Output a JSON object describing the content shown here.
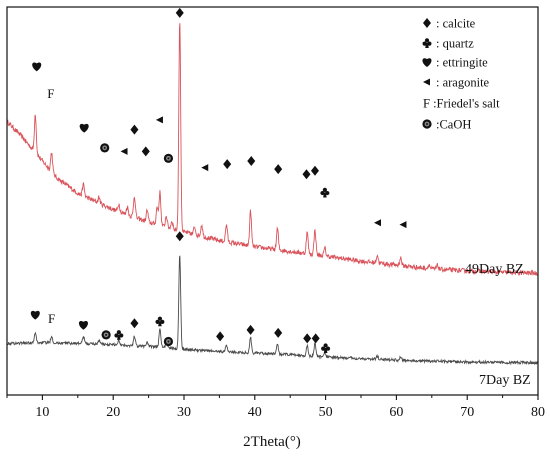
{
  "chart_data": {
    "type": "line",
    "title": "",
    "xlabel": "2Theta(°)",
    "ylabel": "",
    "xlim": [
      5,
      80
    ],
    "xticks": [
      "10",
      "20",
      "30",
      "40",
      "50",
      "60",
      "70",
      "80"
    ],
    "grid": false,
    "legend_position": "top-right",
    "colors": {
      "series_49day": "#d9535a",
      "series_7day": "#4a4a4a",
      "marker": "#111111"
    },
    "legend": [
      {
        "icon": "diamond-icon",
        "label": ": calcite"
      },
      {
        "icon": "club-icon",
        "label": ": quartz"
      },
      {
        "icon": "heart-icon",
        "label": ": ettringite"
      },
      {
        "icon": "triangle-left-icon",
        "label": " : aragonite"
      },
      {
        "icon": "F",
        "label": "F :Friedel's salt"
      },
      {
        "icon": "caoh-icon",
        "label": ":CaOH"
      }
    ],
    "series": [
      {
        "name": "49Day BZ",
        "color": "#d9535a",
        "baseline": [
          [
            5,
            0.705
          ],
          [
            7,
            0.668
          ],
          [
            9,
            0.625
          ],
          [
            12,
            0.56
          ],
          [
            15,
            0.52
          ],
          [
            20,
            0.478
          ],
          [
            25,
            0.445
          ],
          [
            30,
            0.42
          ],
          [
            35,
            0.398
          ],
          [
            40,
            0.382
          ],
          [
            45,
            0.37
          ],
          [
            50,
            0.358
          ],
          [
            55,
            0.345
          ],
          [
            60,
            0.335
          ],
          [
            65,
            0.325
          ],
          [
            70,
            0.32
          ],
          [
            75,
            0.316
          ],
          [
            80,
            0.314
          ]
        ],
        "peaks": [
          [
            9.0,
            0.1
          ],
          [
            11.3,
            0.05
          ],
          [
            15.8,
            0.03
          ],
          [
            18.0,
            0.015
          ],
          [
            20.8,
            0.02
          ],
          [
            22.0,
            0.02
          ],
          [
            23.0,
            0.055
          ],
          [
            24.8,
            0.03
          ],
          [
            26.2,
            0.045
          ],
          [
            26.6,
            0.085
          ],
          [
            27.5,
            0.03
          ],
          [
            28.3,
            0.02
          ],
          [
            29.4,
            0.545
          ],
          [
            31.5,
            0.02
          ],
          [
            32.5,
            0.03
          ],
          [
            36.0,
            0.045
          ],
          [
            39.4,
            0.09
          ],
          [
            43.2,
            0.055
          ],
          [
            47.4,
            0.055
          ],
          [
            48.5,
            0.065
          ],
          [
            49.9,
            0.02
          ],
          [
            57.3,
            0.02
          ],
          [
            60.6,
            0.02
          ],
          [
            64.6,
            0.01
          ],
          [
            65.8,
            0.01
          ]
        ]
      },
      {
        "name": "7Day BZ",
        "color": "#4a4a4a",
        "baseline": [
          [
            5,
            0.133
          ],
          [
            10,
            0.135
          ],
          [
            15,
            0.133
          ],
          [
            20,
            0.13
          ],
          [
            25,
            0.125
          ],
          [
            30,
            0.118
          ],
          [
            35,
            0.112
          ],
          [
            40,
            0.108
          ],
          [
            45,
            0.104
          ],
          [
            50,
            0.098
          ],
          [
            55,
            0.094
          ],
          [
            60,
            0.09
          ],
          [
            65,
            0.087
          ],
          [
            70,
            0.085
          ],
          [
            75,
            0.084
          ],
          [
            80,
            0.083
          ]
        ],
        "peaks": [
          [
            9.0,
            0.025
          ],
          [
            11.3,
            0.018
          ],
          [
            15.8,
            0.018
          ],
          [
            18.0,
            0.01
          ],
          [
            20.8,
            0.012
          ],
          [
            23.0,
            0.025
          ],
          [
            24.8,
            0.012
          ],
          [
            26.6,
            0.05
          ],
          [
            27.5,
            0.012
          ],
          [
            29.4,
            0.245
          ],
          [
            36.0,
            0.018
          ],
          [
            39.4,
            0.04
          ],
          [
            43.2,
            0.025
          ],
          [
            47.4,
            0.025
          ],
          [
            48.5,
            0.032
          ],
          [
            49.9,
            0.012
          ],
          [
            57.3,
            0.008
          ],
          [
            60.6,
            0.008
          ]
        ]
      }
    ],
    "annotations": [
      {
        "symbol": "heart-icon",
        "x": 9.2,
        "y": 0.847
      },
      {
        "symbol": "F",
        "x": 11.2,
        "y": 0.778
      },
      {
        "symbol": "heart-icon",
        "x": 15.9,
        "y": 0.689
      },
      {
        "symbol": "caoh-icon",
        "x": 18.8,
        "y": 0.637
      },
      {
        "symbol": "triangle-left-icon",
        "x": 21.6,
        "y": 0.628
      },
      {
        "symbol": "diamond-icon",
        "x": 23.0,
        "y": 0.684
      },
      {
        "symbol": "diamond-icon",
        "x": 24.6,
        "y": 0.628
      },
      {
        "symbol": "triangle-left-icon",
        "x": 26.6,
        "y": 0.709
      },
      {
        "symbol": "caoh-icon",
        "x": 27.8,
        "y": 0.61
      },
      {
        "symbol": "diamond-icon",
        "x": 29.4,
        "y": 0.985
      },
      {
        "symbol": "triangle-left-icon",
        "x": 33.0,
        "y": 0.586
      },
      {
        "symbol": "diamond-icon",
        "x": 36.1,
        "y": 0.595
      },
      {
        "symbol": "diamond-icon",
        "x": 39.5,
        "y": 0.603
      },
      {
        "symbol": "diamond-icon",
        "x": 43.3,
        "y": 0.582
      },
      {
        "symbol": "diamond-icon",
        "x": 47.3,
        "y": 0.569
      },
      {
        "symbol": "diamond-icon",
        "x": 48.5,
        "y": 0.578
      },
      {
        "symbol": "club-icon",
        "x": 49.9,
        "y": 0.522
      },
      {
        "symbol": "triangle-left-icon",
        "x": 57.4,
        "y": 0.444
      },
      {
        "symbol": "triangle-left-icon",
        "x": 61.0,
        "y": 0.439
      },
      {
        "symbol": "diamond-icon",
        "x": 29.4,
        "y": 0.409
      },
      {
        "symbol": "heart-icon",
        "x": 9.0,
        "y": 0.207
      },
      {
        "symbol": "F",
        "x": 11.3,
        "y": 0.199
      },
      {
        "symbol": "heart-icon",
        "x": 15.8,
        "y": 0.181
      },
      {
        "symbol": "caoh-icon",
        "x": 19.0,
        "y": 0.155
      },
      {
        "symbol": "club-icon",
        "x": 20.8,
        "y": 0.155
      },
      {
        "symbol": "diamond-icon",
        "x": 23.0,
        "y": 0.185
      },
      {
        "symbol": "club-icon",
        "x": 26.6,
        "y": 0.19
      },
      {
        "symbol": "caoh-icon",
        "x": 27.8,
        "y": 0.138
      },
      {
        "symbol": "diamond-icon",
        "x": 35.1,
        "y": 0.151
      },
      {
        "symbol": "diamond-icon",
        "x": 39.4,
        "y": 0.168
      },
      {
        "symbol": "diamond-icon",
        "x": 43.3,
        "y": 0.16
      },
      {
        "symbol": "diamond-icon",
        "x": 47.4,
        "y": 0.146
      },
      {
        "symbol": "diamond-icon",
        "x": 48.6,
        "y": 0.146
      },
      {
        "symbol": "club-icon",
        "x": 50.0,
        "y": 0.121
      }
    ]
  }
}
